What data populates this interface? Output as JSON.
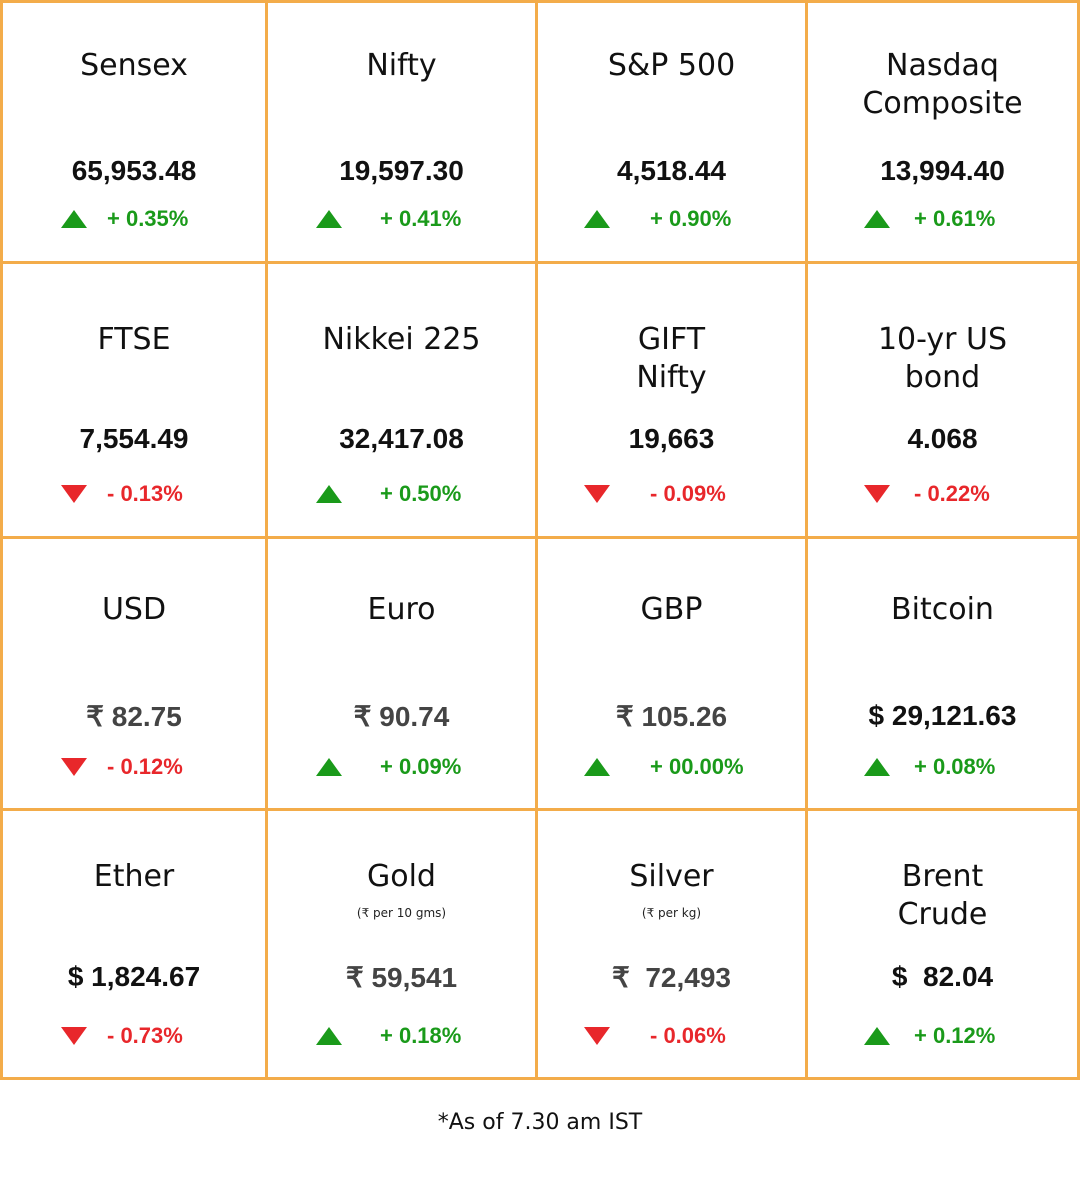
{
  "colors": {
    "grid_border": "#f3ac4a",
    "up": "#1a9a1a",
    "down": "#e8272b"
  },
  "tiles": [
    {
      "name": "Sensex",
      "value": "65,953.48",
      "change": "+ 0.35%",
      "direction": "up"
    },
    {
      "name": "Nifty",
      "value": "19,597.30",
      "change": "+ 0.41%",
      "direction": "up"
    },
    {
      "name": "S&P 500",
      "value": "4,518.44",
      "change": "+ 0.90%",
      "direction": "up"
    },
    {
      "name": "Nasdaq Composite",
      "value": "13,994.40",
      "change": "+ 0.61%",
      "direction": "up"
    },
    {
      "name": "FTSE",
      "value": "7,554.49",
      "change": "- 0.13%",
      "direction": "down"
    },
    {
      "name": "Nikkei 225",
      "value": "32,417.08",
      "change": "+ 0.50%",
      "direction": "up"
    },
    {
      "name": "GIFT Nifty",
      "value": "19,663",
      "change": "- 0.09%",
      "direction": "down"
    },
    {
      "name": "10-yr US bond",
      "value": "4.068",
      "change": "- 0.22%",
      "direction": "down"
    },
    {
      "name": "USD",
      "value": "₹ 82.75",
      "change": "- 0.12%",
      "direction": "down"
    },
    {
      "name": "Euro",
      "value": "₹ 90.74",
      "change": "+ 0.09%",
      "direction": "up"
    },
    {
      "name": "GBP",
      "value": "₹ 105.26",
      "change": "+ 00.00%",
      "direction": "up"
    },
    {
      "name": "Bitcoin",
      "value": "$ 29,121.63",
      "change": "+ 0.08%",
      "direction": "up"
    },
    {
      "name": "Ether",
      "value": "$ 1,824.67",
      "change": "- 0.73%",
      "direction": "down"
    },
    {
      "name": "Gold",
      "subtitle": "(₹ per 10 gms)",
      "value": "₹ 59,541",
      "change": "+ 0.18%",
      "direction": "up"
    },
    {
      "name": "Silver",
      "subtitle": "(₹ per kg)",
      "value": "₹  72,493",
      "change": "- 0.06%",
      "direction": "down"
    },
    {
      "name": "Brent Crude",
      "value": "$  82.04",
      "change": "+ 0.12%",
      "direction": "up"
    }
  ],
  "footnote": "*As of 7.30 am IST"
}
